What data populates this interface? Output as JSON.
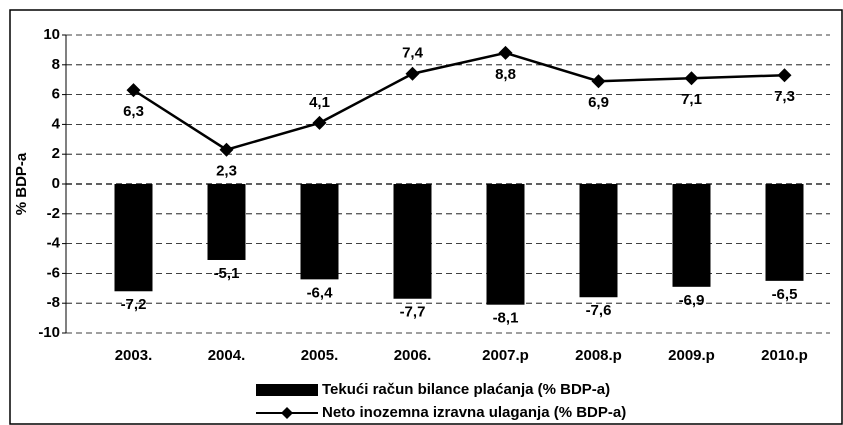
{
  "chart_data": {
    "type": "bar",
    "y_label": "% BDP-a",
    "categories": [
      "2003.",
      "2004.",
      "2005.",
      "2006.",
      "2007.p",
      "2008.p",
      "2009.p",
      "2010.p"
    ],
    "series": [
      {
        "name": "Tekući račun bilance plaćanja (% BDP-a)",
        "type": "bar",
        "color": "#000000",
        "values": [
          -7.2,
          -5.1,
          -6.4,
          -7.7,
          -8.1,
          -7.6,
          -6.9,
          -6.5
        ],
        "value_labels": [
          "-7,2",
          "-5,1",
          "-6,4",
          "-7,7",
          "-8,1",
          "-7,6",
          "-6,9",
          "-6,5"
        ]
      },
      {
        "name": "Neto inozemna izravna ulaganja (% BDP-a)",
        "type": "line",
        "color": "#000000",
        "values": [
          6.3,
          2.3,
          4.1,
          7.4,
          8.8,
          6.9,
          7.1,
          7.3
        ],
        "value_labels": [
          "6,3",
          "2,3",
          "4,1",
          "7,4",
          "8,8",
          "6,9",
          "7,1",
          "7,3"
        ]
      }
    ],
    "ylim": [
      -10,
      10
    ],
    "yticks": [
      10,
      8,
      6,
      4,
      2,
      0,
      -2,
      -4,
      -6,
      -8,
      -10
    ],
    "grid": true,
    "legend": "bottom"
  }
}
